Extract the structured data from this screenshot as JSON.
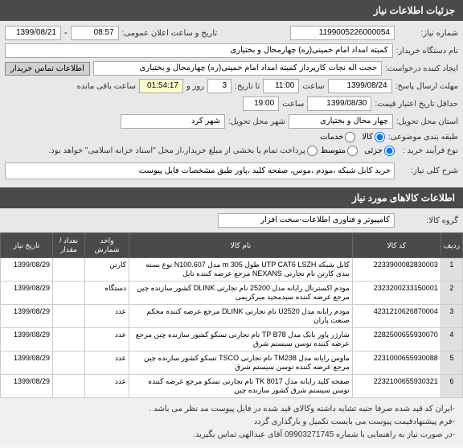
{
  "headers": {
    "main": "جزئیات اطلاعات نیاز",
    "items": "اطلاعات کالاهای مورد نیاز"
  },
  "labels": {
    "need_no": "شماره نیاز:",
    "announce_datetime": "تاریخ و ساعت اعلان عمومی:",
    "buyer_org": "نام دستگاه خریدار:",
    "creator": "ایجاد کننده درخواست:",
    "buyer_contact_btn": "اطلاعات تماس خریدار",
    "deadline": "مهلت ارسال پاسخ:",
    "hour": "ساعت",
    "to_date": "تا تاریخ:",
    "day_and": "روز و",
    "time_remaining": "ساعت باقی مانده",
    "validity": "حداقل تاریخ اعتبار قیمت:",
    "delivery_province": "استان محل تحویل:",
    "delivery_city": "شهر محل تحویل:",
    "budget_cat": "طبقه بندی موضوعی:",
    "goods": "کالا",
    "services": "خدمات",
    "purchase_process": "نوع فرآیند خرید :",
    "small": "جزئی",
    "medium": "متوسط",
    "note_payment": "پرداخت تمام یا بخشی از مبلغ خریدار،از محل \"اسناد خزانه اسلامی\" خواهد بود.",
    "general_desc": "شرح کلی نیاز:",
    "goods_group": "گروه کالا:"
  },
  "values": {
    "need_no": "1199005226000054",
    "announce_date": "1399/08/21",
    "announce_time": "08:57",
    "buyer_org": "کمیته امداد امام خمینی(ره) چهارمحال و بختیاری",
    "creator": "حجت اله نجات کارپرداز کمیته امداد امام خمینی(ره) چهارمحال و بختیاری",
    "deadline_date": "1399/08/24",
    "deadline_time": "11:00",
    "days_left": "3",
    "time_left": "01:54:17",
    "validity_date": "1399/08/30",
    "validity_time": "19:00",
    "delivery_province": "چهار محال و بختیاری",
    "delivery_city": "شهر کرد",
    "general_desc": "خرید کابل شبکه ،مودم ،موس، صفحه کلید ،پاور طبق مشخصات فایل پیوست",
    "goods_group": "کامپیوتر و فناوری اطلاعات-سخت افزار"
  },
  "table": {
    "cols": {
      "row": "ردیف",
      "code": "کد کالا",
      "name": "نام کالا",
      "brand": "واحد شمارش",
      "unit": "تعداد / مقدار",
      "date": "تاریخ نیاز"
    },
    "rows": [
      {
        "n": "1",
        "code": "2233900082830003",
        "name": "کابل شبکه UTP CAT6 LSZH طول m 305 مدل N100.607 نوع بسته بندی کارتن نام تجارتی NEXANS مرجع عرضه کننده تابل",
        "brand": "کارتن",
        "unit": "",
        "date": "1399/08/29"
      },
      {
        "n": "2",
        "code": "2323200233150001",
        "name": "مودم اکسترنال رایانه مدل 25200 نام تجارتی DLINK کشور سازنده چین مرجع عرضه کننده سیدمجید میرکریمی",
        "brand": "دستگاه",
        "unit": "",
        "date": "1399/08/29"
      },
      {
        "n": "3",
        "code": "4231210626870004",
        "name": "مودم رایانه مدل U2520 نام تجارتی DLINK مرجع عرضه کننده محکم صنعت پاران",
        "brand": "عدد",
        "unit": "",
        "date": "1399/08/29"
      },
      {
        "n": "4",
        "code": "2282500655930070",
        "name": "شارژر پاور بانک مدل TP B78 نام تجارتی تسکو کشور سازنده چین مرجع عرضه کننده توسن سیستم شرق",
        "brand": "عدد",
        "unit": "",
        "date": "1399/08/29"
      },
      {
        "n": "5",
        "code": "2231000655930088",
        "name": "ماوس رایانه مدل TM238 نام تجارتی TSCO تسکو کشور سازنده چین مرجع عرضه کننده توسن سیستم شرق",
        "brand": "عدد",
        "unit": "",
        "date": "1399/08/29"
      },
      {
        "n": "6",
        "code": "2232100655930321",
        "name": "صفحه کلید رایانه مدل TK 8017 نام تجارتی تسکو مرجع عرضه کننده توسن سیستم شرق کشور سازنده چین",
        "brand": "عدد",
        "unit": "",
        "date": "1399/08/29"
      }
    ]
  },
  "footer": {
    "l1": "-ایران کد قید شده صرفا جنبه تشابه داشته وکالای قید شده در فایل پیوست مد نظر می باشد .",
    "l2": "-فرم پیشنهادقیمت پیوست می بایست تکمیل و بارگذاری گردد",
    "l3": "-در صورت نیاز به راهنمایی با شماره 09903271745 آقای عبدالهی  تماس بگیرید."
  }
}
